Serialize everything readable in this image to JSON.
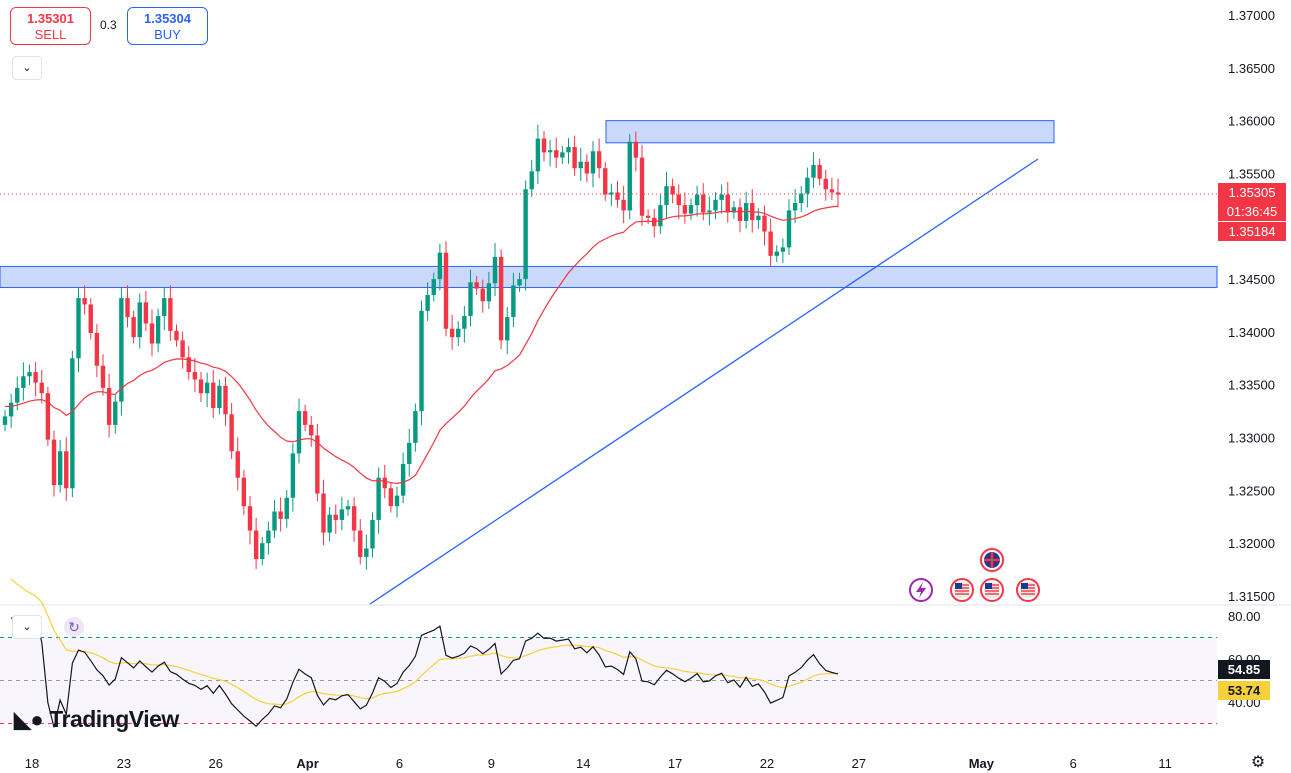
{
  "trade_panel": {
    "sell_price": "1.35301",
    "sell_label": "SELL",
    "spread": "0.3",
    "buy_price": "1.35304",
    "buy_label": "BUY"
  },
  "price_tags": {
    "last_price": "1.35305",
    "countdown": "01:36:45",
    "ma_value": "1.35184"
  },
  "rsi_tags": {
    "rsi": "54.85",
    "rsi_ma": "53.74"
  },
  "brand": {
    "logo_text": "TradingView"
  },
  "icons": {
    "collapse": "chevron-down-icon",
    "refresh": "refresh-icon",
    "settings": "gear-icon",
    "event_lightning": "lightning-icon",
    "flag_us": "us-flag-icon",
    "flag_uk": "uk-flag-icon"
  },
  "colors": {
    "bull": "#089981",
    "bear": "#f23645",
    "ma": "#f23645",
    "zone_fill": "#bbcefa",
    "zone_border": "#2962ff",
    "trendline": "#2962ff",
    "rsi_line": "#131722",
    "rsi_ma_line": "#f7d13c"
  },
  "chart_data": [
    {
      "type": "candlestick",
      "symbol_quote": "price",
      "y_axis_ticks": [
        "1.37000",
        "1.36500",
        "1.36000",
        "1.35500",
        "1.35000",
        "1.34500",
        "1.34000",
        "1.33500",
        "1.33000",
        "1.32500",
        "1.32000",
        "1.31500"
      ],
      "ylim": [
        1.3148,
        1.3712
      ],
      "x_axis_ticks": [
        {
          "label": "18",
          "index": 0
        },
        {
          "label": "23",
          "index": 15
        },
        {
          "label": "26",
          "index": 30
        },
        {
          "label": "Apr",
          "index": 45
        },
        {
          "label": "6",
          "index": 60
        },
        {
          "label": "9",
          "index": 75
        },
        {
          "label": "14",
          "index": 90
        },
        {
          "label": "17",
          "index": 105
        },
        {
          "label": "22",
          "index": 120
        },
        {
          "label": "27",
          "index": 135
        },
        {
          "label": "May",
          "index": 155
        },
        {
          "label": "6",
          "index": 170
        },
        {
          "label": "11",
          "index": 185
        }
      ],
      "close": [
        1.332,
        1.3333,
        1.3347,
        1.3358,
        1.3362,
        1.3352,
        1.3342,
        1.3298,
        1.3255,
        1.3287,
        1.3252,
        1.3375,
        1.3432,
        1.3426,
        1.3399,
        1.3368,
        1.3347,
        1.3312,
        1.3334,
        1.3432,
        1.3414,
        1.3395,
        1.3428,
        1.3408,
        1.3389,
        1.3415,
        1.3432,
        1.3401,
        1.3392,
        1.3376,
        1.3362,
        1.3355,
        1.3342,
        1.3352,
        1.3328,
        1.3349,
        1.3322,
        1.3287,
        1.3262,
        1.3235,
        1.3212,
        1.3185,
        1.32,
        1.3212,
        1.323,
        1.3223,
        1.3243,
        1.3285,
        1.3325,
        1.3312,
        1.3302,
        1.3247,
        1.321,
        1.3227,
        1.3222,
        1.3232,
        1.3235,
        1.3212,
        1.3187,
        1.3195,
        1.3222,
        1.3262,
        1.3252,
        1.3235,
        1.3245,
        1.3275,
        1.3295,
        1.3325,
        1.342,
        1.3435,
        1.345,
        1.3475,
        1.3403,
        1.3395,
        1.3403,
        1.3415,
        1.3447,
        1.3441,
        1.3429,
        1.3446,
        1.3471,
        1.3392,
        1.3414,
        1.3444,
        1.345,
        1.3535,
        1.3552,
        1.3583,
        1.357,
        1.3572,
        1.3565,
        1.357,
        1.3575,
        1.3555,
        1.3561,
        1.355,
        1.3571,
        1.3555,
        1.353,
        1.3532,
        1.3525,
        1.3515,
        1.358,
        1.3565,
        1.351,
        1.3508,
        1.35,
        1.352,
        1.3538,
        1.353,
        1.352,
        1.3512,
        1.352,
        1.353,
        1.3513,
        1.3515,
        1.3525,
        1.353,
        1.3513,
        1.3518,
        1.3505,
        1.3522,
        1.3506,
        1.351,
        1.3495,
        1.3472,
        1.3476,
        1.348,
        1.3515,
        1.3522,
        1.3531,
        1.3546,
        1.3558,
        1.3545,
        1.3535,
        1.3532,
        1.353
      ],
      "candle_count": 137,
      "note_series": "close values (price units), candles alternate direction from previous close",
      "indicators": {
        "moving_average_label": "",
        "ma_last": 1.35184
      },
      "zones": [
        {
          "from": 1.3579,
          "to": 1.36
        },
        {
          "from": 1.3442,
          "to": 1.3462
        }
      ],
      "trendline": {
        "start": {
          "index": 41,
          "price": 1.3148
        },
        "end": {
          "index": 155,
          "price": 1.3565
        }
      },
      "last_price": 1.35305
    },
    {
      "type": "line",
      "panel": "RSI",
      "y_axis_ticks": [
        "80.00",
        "60.00",
        "40.00"
      ],
      "ylim": [
        24,
        84
      ],
      "levels": [
        70,
        50,
        30
      ],
      "rsi_last": 54.85,
      "rsi_ma_last": 53.74
    }
  ]
}
